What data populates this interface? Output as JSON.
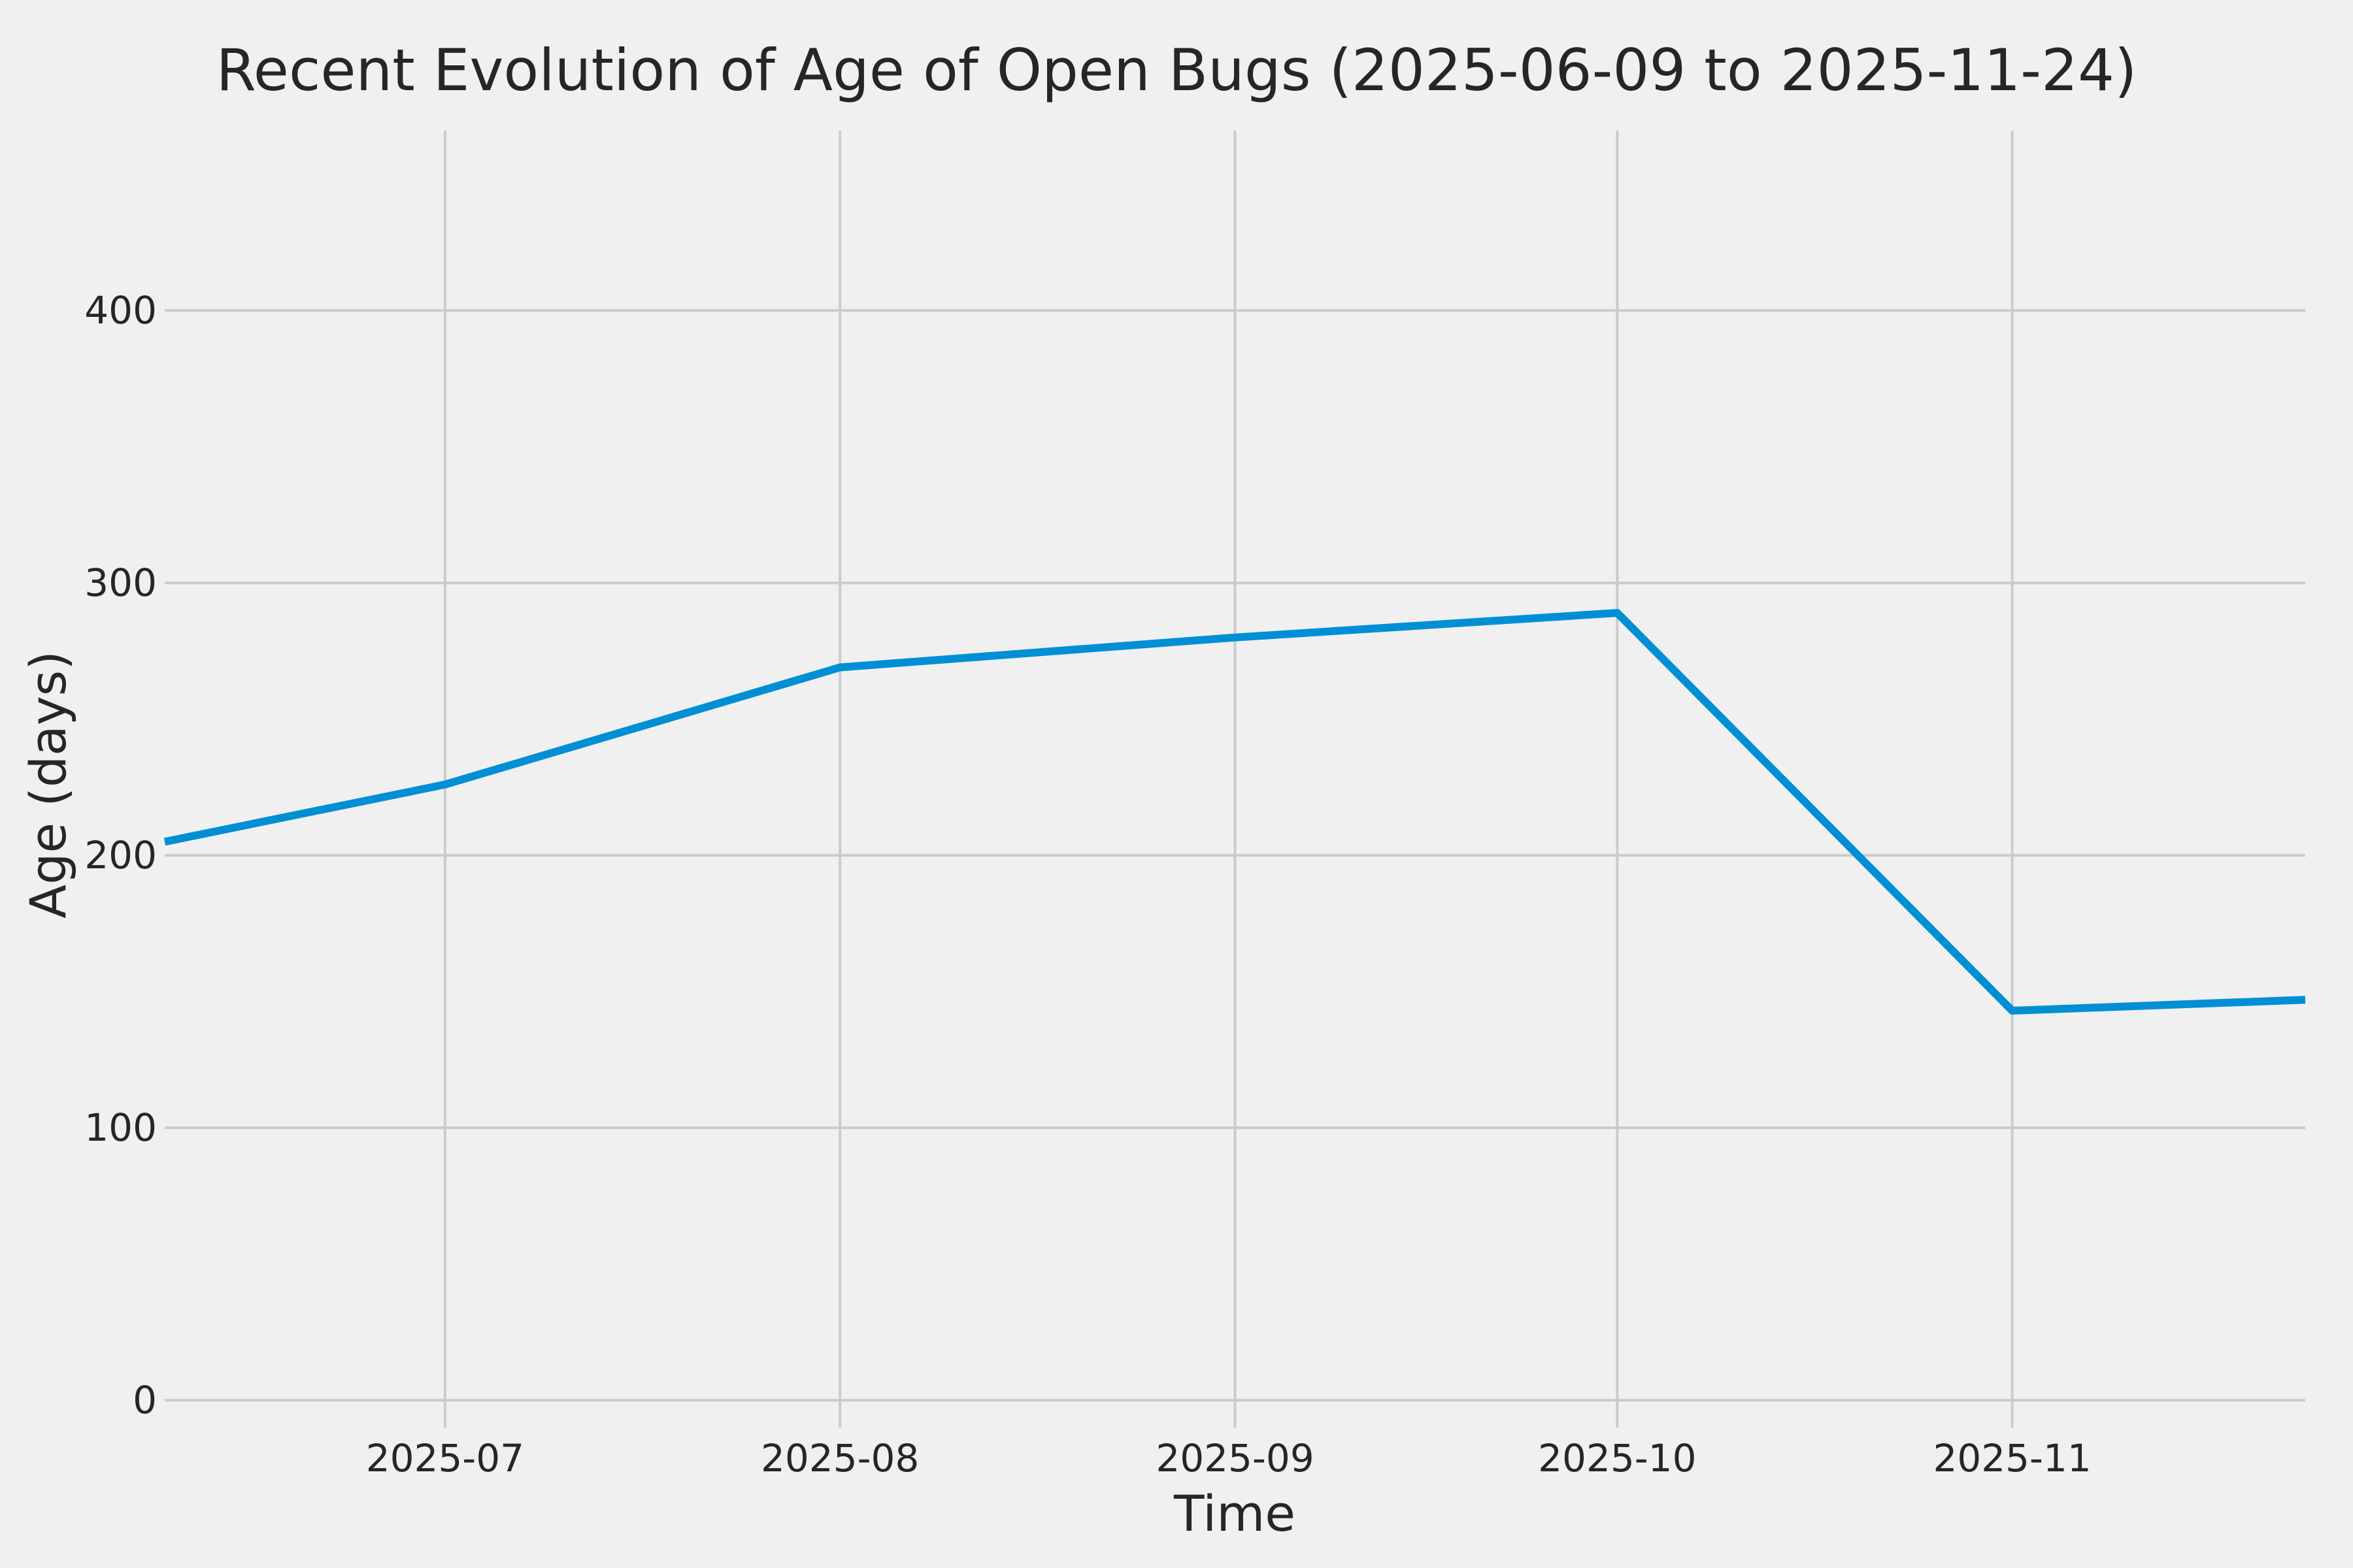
{
  "figure": {
    "title": "Recent Evolution of Age of Open Bugs (2025-06-09 to 2025-11-24)",
    "background_color": "#f0f0f0",
    "grid_color": "#cbcbcb",
    "text_color": "#262626"
  },
  "chart_data": {
    "type": "line",
    "title": "Recent Evolution of Age of Open Bugs (2025-06-09 to 2025-11-24)",
    "xlabel": "Time",
    "ylabel": "Age (days)",
    "series_name": "Age of open bugs",
    "series_color": "#008fd5",
    "grid": true,
    "legend": false,
    "x_start": "2025-06-09",
    "x_end": "2025-11-24",
    "ylim": [
      -10,
      466
    ],
    "y_ticks": [
      0,
      100,
      200,
      300,
      400
    ],
    "x_ticks": [
      {
        "date": "2025-07-01",
        "label": "2025-07"
      },
      {
        "date": "2025-08-01",
        "label": "2025-08"
      },
      {
        "date": "2025-09-01",
        "label": "2025-09"
      },
      {
        "date": "2025-10-01",
        "label": "2025-10"
      },
      {
        "date": "2025-11-01",
        "label": "2025-11"
      }
    ],
    "points": [
      {
        "date": "2025-06-09",
        "value": 205
      },
      {
        "date": "2025-07-01",
        "value": 226
      },
      {
        "date": "2025-08-01",
        "value": 269
      },
      {
        "date": "2025-09-01",
        "value": 280
      },
      {
        "date": "2025-10-01",
        "value": 289
      },
      {
        "date": "2025-11-01",
        "value": 143
      },
      {
        "date": "2025-11-24",
        "value": 147
      }
    ]
  }
}
